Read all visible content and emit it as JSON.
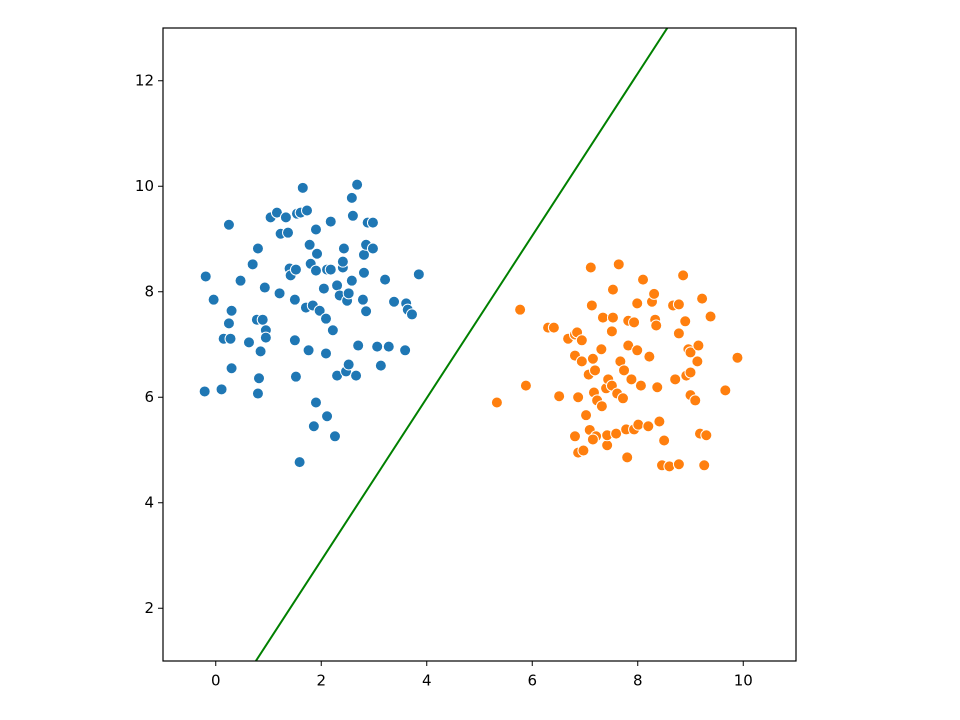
{
  "chart_data": {
    "type": "scatter",
    "xlim": [
      -1,
      11
    ],
    "ylim": [
      1,
      13
    ],
    "xticks": [
      0,
      2,
      4,
      6,
      8,
      10
    ],
    "yticks": [
      2,
      4,
      6,
      8,
      10,
      12
    ],
    "series": [
      {
        "color": "#1f77b4",
        "x": [
          -0.19,
          -0.04,
          -0.21,
          0.11,
          0.25,
          0.15,
          0.3,
          0.25,
          0.28,
          0.3,
          0.47,
          0.7,
          0.63,
          0.8,
          0.78,
          0.89,
          0.85,
          0.82,
          0.8,
          0.93,
          0.95,
          0.95,
          1.04,
          1.16,
          1.23,
          1.33,
          1.37,
          1.21,
          1.4,
          1.42,
          1.52,
          1.54,
          1.61,
          1.73,
          1.65,
          1.5,
          1.5,
          1.52,
          1.59,
          1.71,
          1.78,
          1.8,
          1.84,
          1.76,
          1.9,
          1.9,
          1.92,
          1.97,
          1.9,
          1.86,
          2.05,
          2.09,
          2.11,
          2.18,
          2.09,
          2.11,
          2.18,
          2.22,
          2.26,
          2.3,
          2.3,
          2.35,
          2.41,
          2.43,
          2.41,
          2.49,
          2.47,
          2.52,
          2.52,
          2.58,
          2.6,
          2.58,
          2.68,
          2.66,
          2.7,
          2.81,
          2.79,
          2.85,
          2.81,
          2.85,
          2.88,
          2.98,
          2.98,
          3.06,
          3.13,
          3.21,
          3.28,
          3.38,
          3.59,
          3.61,
          3.64,
          3.72,
          3.85
        ],
        "values": [
          8.29,
          7.85,
          6.11,
          6.15,
          9.27,
          7.11,
          7.64,
          7.4,
          7.11,
          6.55,
          8.21,
          8.52,
          7.04,
          8.82,
          7.47,
          7.47,
          6.87,
          6.36,
          6.07,
          8.08,
          7.27,
          7.13,
          9.41,
          9.5,
          9.1,
          9.41,
          9.12,
          7.97,
          8.44,
          8.31,
          8.42,
          9.48,
          9.5,
          9.54,
          9.97,
          7.85,
          7.08,
          6.39,
          4.77,
          7.7,
          8.89,
          8.53,
          7.74,
          6.89,
          9.18,
          8.4,
          8.72,
          7.64,
          5.9,
          5.45,
          8.06,
          7.49,
          8.42,
          8.42,
          6.83,
          5.64,
          9.33,
          7.27,
          5.26,
          8.12,
          6.41,
          7.93,
          8.46,
          8.82,
          8.57,
          7.83,
          6.49,
          6.62,
          7.97,
          8.21,
          9.44,
          9.78,
          10.03,
          6.41,
          6.98,
          8.36,
          7.85,
          7.63,
          8.7,
          8.89,
          9.31,
          9.31,
          8.82,
          6.96,
          6.6,
          8.23,
          6.96,
          7.81,
          6.89,
          7.78,
          7.66,
          7.57,
          8.33
        ]
      },
      {
        "color": "#ff7f0e",
        "x": [
          5.33,
          5.77,
          5.88,
          6.3,
          6.41,
          6.51,
          6.68,
          6.81,
          6.85,
          6.81,
          6.94,
          6.81,
          6.87,
          6.87,
          6.97,
          6.94,
          7.02,
          7.07,
          7.09,
          7.11,
          7.13,
          7.19,
          7.15,
          7.17,
          7.23,
          7.21,
          7.15,
          7.31,
          7.32,
          7.34,
          7.4,
          7.42,
          7.42,
          7.44,
          7.51,
          7.53,
          7.51,
          7.53,
          7.59,
          7.64,
          7.61,
          7.67,
          7.74,
          7.72,
          7.8,
          7.82,
          7.82,
          7.78,
          7.88,
          7.93,
          7.99,
          7.99,
          7.93,
          8.01,
          8.06,
          8.1,
          8.2,
          8.22,
          8.27,
          8.31,
          8.33,
          8.35,
          8.37,
          8.41,
          8.5,
          8.46,
          8.6,
          8.67,
          8.71,
          8.78,
          8.78,
          8.78,
          8.86,
          8.9,
          8.92,
          8.96,
          9.0,
          9.0,
          9.0,
          9.09,
          9.13,
          9.15,
          9.18,
          9.22,
          9.26,
          9.3,
          9.38,
          9.66,
          9.89
        ],
        "values": [
          5.9,
          7.66,
          6.22,
          7.32,
          7.32,
          6.02,
          7.11,
          7.19,
          7.23,
          6.79,
          7.08,
          5.26,
          6.0,
          4.95,
          4.99,
          6.68,
          5.66,
          6.43,
          5.38,
          8.46,
          7.74,
          6.51,
          6.73,
          6.09,
          5.94,
          5.26,
          5.2,
          6.91,
          5.83,
          7.51,
          6.17,
          5.09,
          5.28,
          6.34,
          7.25,
          7.51,
          6.22,
          8.04,
          5.31,
          8.52,
          6.07,
          6.68,
          6.51,
          5.98,
          4.86,
          6.98,
          7.45,
          5.39,
          6.34,
          7.42,
          7.78,
          6.89,
          5.39,
          5.48,
          6.22,
          8.23,
          5.45,
          6.77,
          7.81,
          7.96,
          7.47,
          7.36,
          6.19,
          5.54,
          5.18,
          4.71,
          4.69,
          7.74,
          6.34,
          7.76,
          7.21,
          4.73,
          8.31,
          7.44,
          6.41,
          6.91,
          6.85,
          6.47,
          6.04,
          5.94,
          6.68,
          6.98,
          5.31,
          7.87,
          4.71,
          5.28,
          7.53,
          6.13,
          6.75
        ]
      },
      {
        "color": "#008000",
        "style": "line",
        "x": [
          0.76,
          8.56
        ],
        "values": [
          1,
          13
        ]
      }
    ]
  }
}
